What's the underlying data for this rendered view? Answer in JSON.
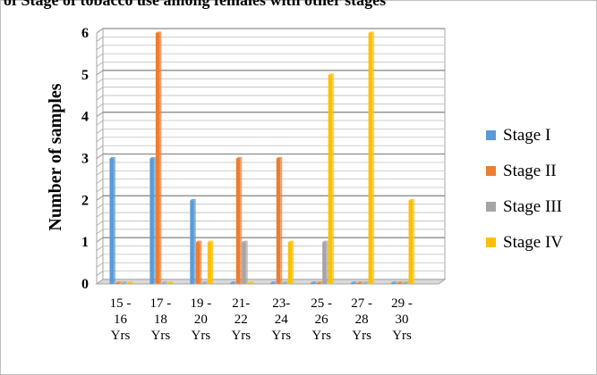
{
  "chart_data": {
    "type": "bar",
    "title": "of Stage of tobacco use among females with other stages",
    "ylabel": "Number of samples",
    "xlabel": "",
    "ylim": [
      0,
      6
    ],
    "yticks": [
      "0",
      "1",
      "2",
      "3",
      "4",
      "5",
      "6"
    ],
    "grid": true,
    "legend_position": "right",
    "categories": [
      [
        "15 -",
        "16",
        "Yrs"
      ],
      [
        "17 -",
        "18",
        "Yrs"
      ],
      [
        "19 -",
        "20",
        "Yrs"
      ],
      [
        "21-",
        "22",
        "Yrs"
      ],
      [
        "23-",
        "24",
        "Yrs"
      ],
      [
        "25 -",
        "26",
        "Yrs"
      ],
      [
        "27 -",
        "28",
        "Yrs"
      ],
      [
        "29 -",
        "30",
        "Yrs"
      ]
    ],
    "series": [
      {
        "name": "Stage I",
        "color": "#5B9BD5",
        "values": [
          3,
          3,
          2,
          0,
          0,
          0,
          0,
          0
        ]
      },
      {
        "name": "Stage II",
        "color": "#ED7D31",
        "values": [
          0,
          6,
          1,
          3,
          3,
          0,
          0,
          0
        ]
      },
      {
        "name": "Stage III",
        "color": "#A5A5A5",
        "values": [
          0,
          0,
          0,
          1,
          0,
          1,
          0,
          0
        ]
      },
      {
        "name": "Stage IV",
        "color": "#FFC000",
        "values": [
          0,
          0,
          1,
          0,
          1,
          5,
          6,
          2
        ]
      }
    ]
  }
}
